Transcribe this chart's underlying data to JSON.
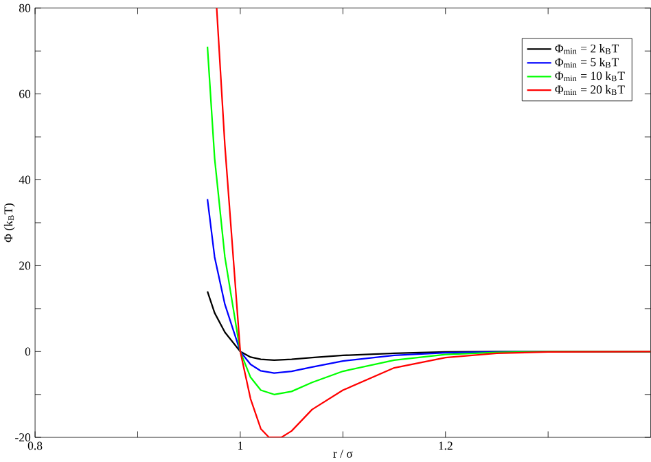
{
  "chart_data": {
    "type": "line",
    "xlabel": "r / σ",
    "ylabel": "Φ (k$_{B}$T)",
    "xlim": [
      0.8,
      1.4
    ],
    "ylim": [
      -20,
      80
    ],
    "xticks": [
      0.8,
      {
        "value": 0.9,
        "label": null
      },
      {
        "value": 1.0,
        "label": "1"
      },
      {
        "value": 1.1,
        "label": null
      },
      1.2,
      {
        "value": 1.3,
        "label": null
      }
    ],
    "yticks": [
      -20,
      {
        "value": -10,
        "label": null
      },
      0,
      {
        "value": 10,
        "label": null
      },
      20,
      {
        "value": 30,
        "label": null
      },
      40,
      {
        "value": 50,
        "label": null
      },
      60,
      {
        "value": 70,
        "label": null
      },
      80
    ],
    "legend": "top right",
    "grid": false,
    "marker": "none",
    "line_style": "solid",
    "series": [
      {
        "name": "Φ$_{min}$ = 2 k$_{B}$T",
        "color": "#000000",
        "x": [
          0.968,
          0.975,
          0.985,
          1.0,
          1.01,
          1.02,
          1.033,
          1.05,
          1.07,
          1.1,
          1.15,
          1.2,
          1.25,
          1.3,
          1.4
        ],
        "values": [
          14,
          9,
          4.5,
          0,
          -1.3,
          -1.8,
          -2,
          -1.8,
          -1.4,
          -0.9,
          -0.4,
          -0.1,
          0,
          0,
          0
        ]
      },
      {
        "name": "Φ$_{min}$ = 5 k$_{B}$T",
        "color": "#0000ff",
        "x": [
          0.968,
          0.975,
          0.985,
          1.0,
          1.01,
          1.02,
          1.033,
          1.05,
          1.07,
          1.1,
          1.15,
          1.2,
          1.25,
          1.3,
          1.4
        ],
        "values": [
          35.5,
          22,
          11,
          0,
          -3,
          -4.5,
          -5,
          -4.6,
          -3.6,
          -2.2,
          -0.9,
          -0.3,
          -0.1,
          0,
          0
        ]
      },
      {
        "name": "Φ$_{min}$ = 10 k$_{B}$T",
        "color": "#00ff00",
        "x": [
          0.968,
          0.975,
          0.985,
          1.0,
          1.01,
          1.02,
          1.033,
          1.05,
          1.07,
          1.1,
          1.15,
          1.2,
          1.25,
          1.3,
          1.4
        ],
        "values": [
          71,
          45,
          22,
          0,
          -6,
          -9,
          -10,
          -9.3,
          -7.2,
          -4.6,
          -2,
          -0.7,
          -0.2,
          0,
          0
        ]
      },
      {
        "name": "Φ$_{min}$ = 20 k$_{B}$T",
        "color": "#ff0000",
        "x": [
          0.977,
          0.985,
          1.0,
          1.01,
          1.02,
          1.028,
          1.04,
          1.05,
          1.07,
          1.1,
          1.15,
          1.2,
          1.25,
          1.3,
          1.4
        ],
        "values": [
          80,
          48,
          0,
          -11,
          -18,
          -20,
          -20,
          -18.5,
          -13.5,
          -9,
          -3.8,
          -1.4,
          -0.4,
          -0.1,
          0
        ]
      }
    ]
  }
}
